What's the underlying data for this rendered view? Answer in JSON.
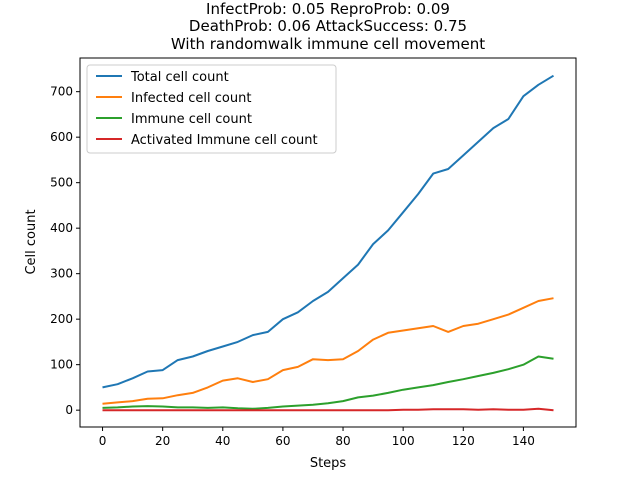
{
  "chart_data": {
    "type": "line",
    "title_lines": [
      "InfectProb: 0.05 ReproProb: 0.09",
      "DeathProb: 0.06 AttackSuccess: 0.75",
      "With randomwalk immune cell movement"
    ],
    "xlabel": "Steps",
    "ylabel": "Cell count",
    "xlim": [
      -7.5,
      157.5
    ],
    "ylim": [
      -37,
      774
    ],
    "xticks": [
      0,
      20,
      40,
      60,
      80,
      100,
      120,
      140
    ],
    "yticks": [
      0,
      100,
      200,
      300,
      400,
      500,
      600,
      700
    ],
    "grid": false,
    "legend_position": "upper-left",
    "x": [
      0,
      5,
      10,
      15,
      20,
      25,
      30,
      35,
      40,
      45,
      50,
      55,
      60,
      65,
      70,
      75,
      80,
      85,
      90,
      95,
      100,
      105,
      110,
      115,
      120,
      125,
      130,
      135,
      140,
      145,
      150
    ],
    "series": [
      {
        "name": "Total cell count",
        "color": "#1f77b4",
        "values": [
          50,
          57,
          70,
          85,
          88,
          110,
          118,
          130,
          140,
          150,
          165,
          172,
          200,
          215,
          240,
          260,
          290,
          320,
          365,
          395,
          435,
          475,
          520,
          530,
          560,
          590,
          620,
          640,
          690,
          715,
          735
        ]
      },
      {
        "name": "Infected cell count",
        "color": "#ff7f0e",
        "values": [
          14,
          17,
          20,
          25,
          26,
          33,
          38,
          50,
          65,
          70,
          62,
          68,
          88,
          95,
          112,
          110,
          112,
          130,
          155,
          170,
          175,
          180,
          185,
          172,
          185,
          190,
          200,
          210,
          225,
          240,
          246
        ]
      },
      {
        "name": "Immune cell count",
        "color": "#2ca02c",
        "values": [
          5,
          6,
          8,
          9,
          8,
          6,
          6,
          5,
          6,
          4,
          3,
          5,
          8,
          10,
          12,
          15,
          20,
          28,
          32,
          38,
          45,
          50,
          55,
          62,
          68,
          75,
          82,
          90,
          100,
          118,
          113
        ]
      },
      {
        "name": "Activated Immune cell count",
        "color": "#d62728",
        "values": [
          0,
          0,
          0,
          0,
          0,
          0,
          0,
          0,
          0,
          0,
          0,
          0,
          0,
          0,
          0,
          0,
          0,
          0,
          0,
          0,
          1,
          1,
          2,
          2,
          2,
          1,
          2,
          1,
          1,
          3,
          0
        ]
      }
    ]
  }
}
